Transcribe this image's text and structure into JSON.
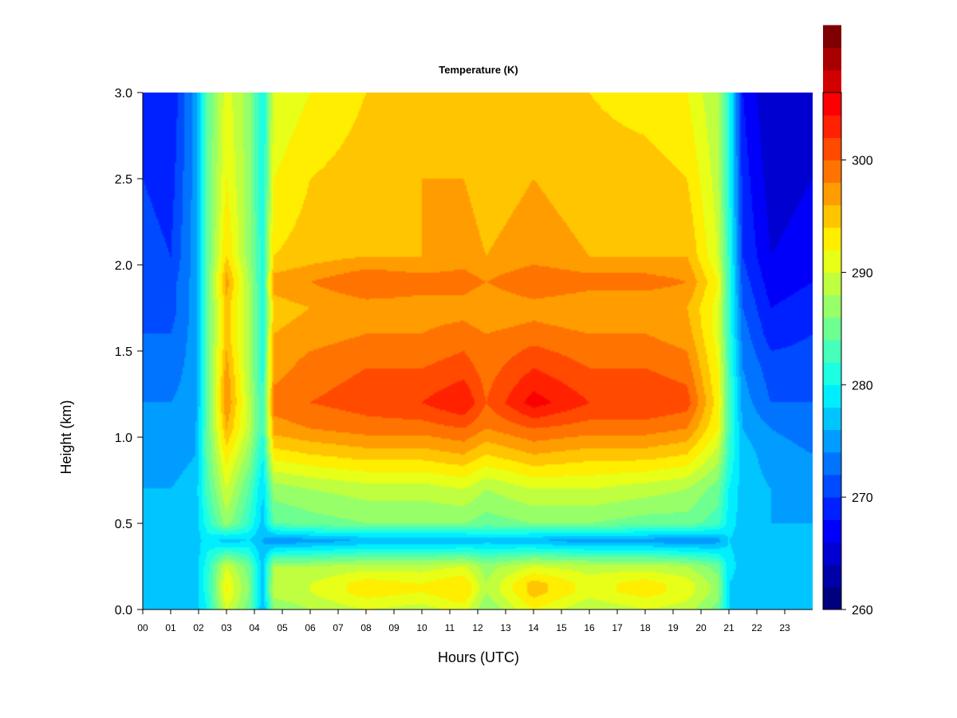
{
  "chart_data": {
    "type": "heatmap",
    "title": "Temperature (K)",
    "xlabel": "Hours (UTC)",
    "ylabel": "Height (km)",
    "xlim": [
      0,
      24
    ],
    "ylim": [
      0,
      3
    ],
    "x_tick_values": [
      0,
      1,
      2,
      3,
      4,
      5,
      6,
      7,
      8,
      9,
      10,
      11,
      12,
      13,
      14,
      15,
      16,
      17,
      18,
      19,
      20,
      21,
      22,
      23
    ],
    "x_tick_labels": [
      "00",
      "01",
      "02",
      "03",
      "04",
      "05",
      "06",
      "07",
      "08",
      "09",
      "10",
      "11",
      "12",
      "13",
      "14",
      "15",
      "16",
      "17",
      "18",
      "19",
      "20",
      "21",
      "22",
      "23"
    ],
    "y_tick_values": [
      0,
      0.5,
      1,
      1.5,
      2,
      2.5,
      3
    ],
    "y_tick_labels": [
      "0.0",
      "0.5",
      "1.0",
      "1.5",
      "2.0",
      "2.5",
      "3.0"
    ],
    "colorbar": {
      "min": 260,
      "max": 306,
      "step": 2,
      "tick_values": [
        260,
        270,
        280,
        290,
        300
      ],
      "tick_labels": [
        "260",
        "270",
        "280",
        "290",
        "300"
      ],
      "colors": [
        "#00007f",
        "#0000a8",
        "#0000d1",
        "#0000fa",
        "#0021ff",
        "#004aff",
        "#0073ff",
        "#009cff",
        "#00c5ff",
        "#00eeff",
        "#1cffe3",
        "#45ffba",
        "#6eff91",
        "#97ff68",
        "#c0ff3f",
        "#e8ff17",
        "#ffee00",
        "#ffc500",
        "#ff9c00",
        "#ff7300",
        "#ff4a00",
        "#ff2100",
        "#fa0000",
        "#d10000",
        "#a80000",
        "#7f0000"
      ]
    },
    "profiles_height_km": [
      0,
      0.1,
      0.15,
      0.25,
      0.4,
      0.5,
      0.7,
      0.9,
      1.05,
      1.2,
      1.4,
      1.6,
      1.75,
      1.9,
      2.05,
      2.5,
      3.0
    ],
    "profiles": [
      {
        "hour": 0.0,
        "temperature_K": [
          277,
          277,
          277,
          277,
          276,
          276,
          276,
          275,
          275,
          274,
          273,
          272,
          272,
          272,
          271,
          270,
          269
        ]
      },
      {
        "hour": 1.0,
        "temperature_K": [
          277,
          277,
          277,
          277,
          276,
          276,
          276,
          275,
          275,
          274,
          273,
          272,
          271,
          271,
          270,
          269,
          268
        ]
      },
      {
        "hour": 1.9,
        "temperature_K": [
          277,
          277,
          277,
          277,
          277,
          277,
          277,
          276,
          276,
          275,
          275,
          275,
          275,
          275,
          275,
          275,
          275
        ]
      },
      {
        "hour": 2.3,
        "temperature_K": [
          280,
          281,
          281,
          281,
          279,
          281,
          283,
          284,
          284,
          284,
          284,
          284,
          284,
          284,
          284,
          284,
          284
        ]
      },
      {
        "hour": 3.0,
        "temperature_K": [
          290,
          292,
          292,
          290,
          277,
          287,
          290,
          293,
          296,
          298,
          297,
          295,
          295,
          297,
          294,
          292,
          291
        ]
      },
      {
        "hour": 3.8,
        "temperature_K": [
          285,
          286,
          286,
          285,
          278,
          282,
          284,
          287,
          289,
          289,
          288,
          288,
          288,
          288,
          287,
          287,
          287
        ]
      },
      {
        "hour": 4.3,
        "temperature_K": [
          276,
          277,
          277,
          277,
          276,
          277,
          278,
          280,
          282,
          282,
          281,
          281,
          281,
          281,
          281,
          280,
          280
        ]
      },
      {
        "hour": 4.7,
        "temperature_K": [
          286,
          289,
          289,
          288,
          274,
          284,
          287,
          293,
          297,
          299,
          297,
          296,
          295,
          297,
          294,
          292,
          290
        ]
      },
      {
        "hour": 6.0,
        "temperature_K": [
          288,
          290,
          290,
          288,
          275,
          285,
          288,
          294,
          298,
          300,
          299,
          297,
          296,
          298,
          295,
          294,
          292
        ]
      },
      {
        "hour": 8.0,
        "temperature_K": [
          290,
          293,
          293,
          289,
          276,
          286,
          289,
          295,
          299,
          301,
          300,
          298,
          297,
          300,
          296,
          295,
          294
        ]
      },
      {
        "hour": 10.0,
        "temperature_K": [
          289,
          292,
          292,
          289,
          276,
          286,
          289,
          295,
          299,
          302,
          300,
          298,
          297,
          299,
          296,
          296,
          294
        ]
      },
      {
        "hour": 11.5,
        "temperature_K": [
          291,
          294,
          294,
          290,
          276,
          286,
          290,
          296,
          300,
          304,
          301,
          299,
          297,
          299,
          297,
          296,
          295
        ]
      },
      {
        "hour": 12.3,
        "temperature_K": [
          286,
          288,
          288,
          287,
          277,
          285,
          288,
          294,
          298,
          300,
          299,
          298,
          296,
          298,
          296,
          295,
          294
        ]
      },
      {
        "hour": 14.0,
        "temperature_K": [
          292,
          295,
          295,
          290,
          276,
          286,
          290,
          296,
          300,
          305,
          302,
          299,
          297,
          300,
          297,
          296,
          295
        ]
      },
      {
        "hour": 16.0,
        "temperature_K": [
          288,
          291,
          291,
          289,
          275,
          286,
          290,
          295,
          299,
          302,
          300,
          298,
          296,
          299,
          296,
          295,
          294
        ]
      },
      {
        "hour": 18.0,
        "temperature_K": [
          290,
          293,
          293,
          289,
          275,
          285,
          289,
          295,
          299,
          302,
          300,
          298,
          296,
          299,
          296,
          295,
          293
        ]
      },
      {
        "hour": 19.5,
        "temperature_K": [
          289,
          291,
          291,
          288,
          274,
          285,
          288,
          294,
          298,
          301,
          299,
          297,
          296,
          298,
          296,
          294,
          292
        ]
      },
      {
        "hour": 20.6,
        "temperature_K": [
          285,
          287,
          287,
          285,
          275,
          283,
          285,
          289,
          292,
          293,
          292,
          291,
          291,
          292,
          290,
          289,
          288
        ]
      },
      {
        "hour": 21.0,
        "temperature_K": [
          278,
          278,
          278,
          279,
          278,
          279,
          280,
          282,
          283,
          283,
          283,
          282,
          282,
          282,
          282,
          281,
          281
        ]
      },
      {
        "hour": 21.5,
        "temperature_K": [
          277,
          277,
          277,
          277,
          277,
          277,
          277,
          277,
          276,
          275,
          274,
          273,
          272,
          271,
          270,
          269,
          268
        ]
      },
      {
        "hour": 22.5,
        "temperature_K": [
          277,
          277,
          277,
          277,
          276,
          276,
          276,
          275,
          274,
          272,
          271,
          269,
          268,
          267,
          266,
          265,
          264
        ]
      },
      {
        "hour": 24.0,
        "temperature_K": [
          277,
          277,
          277,
          277,
          276,
          276,
          275,
          274,
          273,
          272,
          271,
          270,
          269,
          268,
          267,
          266,
          265
        ]
      }
    ]
  }
}
